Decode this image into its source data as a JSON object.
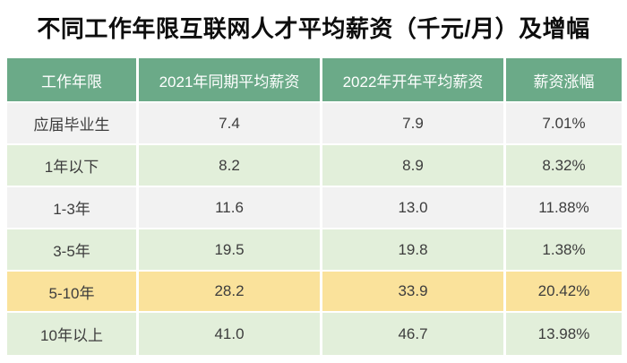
{
  "title": "不同工作年限互联网人才平均薪资（千元/月）及增幅",
  "table": {
    "headers": [
      "工作年限",
      "2021年同期平均薪资",
      "2022年开年平均薪资",
      "薪资涨幅"
    ],
    "rows": [
      {
        "cells": [
          "应届毕业生",
          "7.4",
          "7.9",
          "7.01%"
        ],
        "bg": "#F2F2F2"
      },
      {
        "cells": [
          "1年以下",
          "8.2",
          "8.9",
          "8.32%"
        ],
        "bg": "#E2EFDA"
      },
      {
        "cells": [
          "1-3年",
          "11.6",
          "13.0",
          "11.88%"
        ],
        "bg": "#F2F2F2"
      },
      {
        "cells": [
          "3-5年",
          "19.5",
          "19.8",
          "1.38%"
        ],
        "bg": "#E2EFDA"
      },
      {
        "cells": [
          "5-10年",
          "28.2",
          "33.9",
          "20.42%"
        ],
        "bg": "#FAE29B"
      },
      {
        "cells": [
          "10年以上",
          "41.0",
          "46.7",
          "13.98%"
        ],
        "bg": "#E2EFDA"
      }
    ],
    "colors": {
      "header_bg": "#6BAA88",
      "header_text": "#FFFFFF",
      "row_gray": "#F2F2F2",
      "row_green": "#E2EFDA",
      "row_highlight": "#FAE29B",
      "body_text": "#3D3D3D",
      "title_text": "#0D0D0D"
    },
    "highlighted_row": "5-10年"
  },
  "chart_data": {
    "type": "table",
    "title": "不同工作年限互联网人才平均薪资（千元/月）及增幅",
    "columns": [
      "工作年限",
      "2021年同期平均薪资",
      "2022年开年平均薪资",
      "薪资涨幅"
    ],
    "rows": [
      [
        "应届毕业生",
        7.4,
        7.9,
        "7.01%"
      ],
      [
        "1年以下",
        8.2,
        8.9,
        "8.32%"
      ],
      [
        "1-3年",
        11.6,
        13.0,
        "11.88%"
      ],
      [
        "3-5年",
        19.5,
        19.8,
        "1.38%"
      ],
      [
        "5-10年",
        28.2,
        33.9,
        "20.42%"
      ],
      [
        "10年以上",
        41.0,
        46.7,
        "13.98%"
      ]
    ],
    "units": "千元/月",
    "highlighted_row": "5-10年",
    "legend_position": "none",
    "grid": false
  }
}
